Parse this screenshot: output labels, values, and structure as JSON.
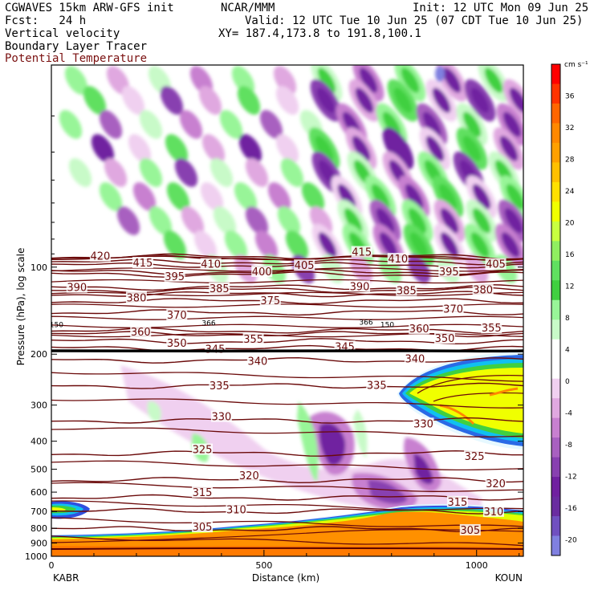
{
  "header": {
    "model_line": "CGWAVES 15km ARW-GFS init",
    "org": "NCAR/MMM",
    "init_line": "Init: 12 UTC Mon 09 Jun 25",
    "fcst_line": "Fcst:   24 h",
    "valid_line": "Valid: 12 UTC Tue 10 Jun 25 (07 CDT Tue 10 Jun 25)",
    "field1": "Vertical velocity",
    "xy_line": "XY= 187.4,173.8 to 191.8,100.1",
    "field2": "Boundary Layer Tracer",
    "field3": "Potential Temperature"
  },
  "chart_data": {
    "type": "cross-section",
    "xlabel": "Distance (km)",
    "ylabel": "Pressure (hPa), log scale",
    "x_ticks": [
      0,
      500,
      1000
    ],
    "xlim": [
      0,
      1110
    ],
    "y_scale": "log",
    "y_ticks": [
      100,
      200,
      300,
      400,
      500,
      600,
      700,
      800,
      900,
      1000
    ],
    "ylim": [
      1000,
      20
    ],
    "left_endpoint": "KABR",
    "right_endpoint": "KOUN",
    "colorbar": {
      "unit": "cm s⁻¹",
      "ticks": [
        36,
        32,
        28,
        24,
        20,
        16,
        12,
        8,
        4,
        0,
        -4,
        -8,
        -12,
        -16,
        -20
      ],
      "colors": [
        "#ff0000",
        "#ff3300",
        "#ff6600",
        "#ff8800",
        "#ffa000",
        "#ffc000",
        "#ffe000",
        "#f0ff00",
        "#c8ff40",
        "#90ee60",
        "#60e060",
        "#40d040",
        "#98f598",
        "#c8fac8",
        "#ffffff",
        "#ffffff",
        "#f0d0f0",
        "#e0a8e0",
        "#c880d0",
        "#a860c0",
        "#8840b0",
        "#7020a0",
        "#6a2ca0",
        "#7050c0",
        "#8080e0"
      ]
    },
    "theta_labels": [
      {
        "value": "420",
        "x_km": 115,
        "p": 92
      },
      {
        "value": "415",
        "x_km": 215,
        "p": 97
      },
      {
        "value": "410",
        "x_km": 375,
        "p": 98
      },
      {
        "value": "405",
        "x_km": 595,
        "p": 99
      },
      {
        "value": "415",
        "x_km": 730,
        "p": 89
      },
      {
        "value": "410",
        "x_km": 815,
        "p": 94
      },
      {
        "value": "405",
        "x_km": 1045,
        "p": 98
      },
      {
        "value": "390",
        "x_km": 60,
        "p": 118
      },
      {
        "value": "395",
        "x_km": 290,
        "p": 108
      },
      {
        "value": "400",
        "x_km": 495,
        "p": 104
      },
      {
        "value": "395",
        "x_km": 935,
        "p": 104
      },
      {
        "value": "390",
        "x_km": 725,
        "p": 117
      },
      {
        "value": "385",
        "x_km": 395,
        "p": 119
      },
      {
        "value": "380",
        "x_km": 200,
        "p": 128
      },
      {
        "value": "375",
        "x_km": 515,
        "p": 131
      },
      {
        "value": "385",
        "x_km": 835,
        "p": 121
      },
      {
        "value": "380",
        "x_km": 1015,
        "p": 120
      },
      {
        "value": "370",
        "x_km": 295,
        "p": 147
      },
      {
        "value": "370",
        "x_km": 945,
        "p": 140
      },
      {
        "value": "360",
        "x_km": 210,
        "p": 168
      },
      {
        "value": "355",
        "x_km": 475,
        "p": 178
      },
      {
        "value": "350",
        "x_km": 295,
        "p": 184
      },
      {
        "value": "345",
        "x_km": 385,
        "p": 193
      },
      {
        "value": "345",
        "x_km": 690,
        "p": 189
      },
      {
        "value": "360",
        "x_km": 865,
        "p": 164
      },
      {
        "value": "350",
        "x_km": 925,
        "p": 177
      },
      {
        "value": "355",
        "x_km": 1035,
        "p": 163
      },
      {
        "value": "340",
        "x_km": 485,
        "p": 212
      },
      {
        "value": "340",
        "x_km": 855,
        "p": 208
      },
      {
        "value": "335",
        "x_km": 395,
        "p": 258
      },
      {
        "value": "335",
        "x_km": 765,
        "p": 257
      },
      {
        "value": "330",
        "x_km": 400,
        "p": 330
      },
      {
        "value": "330",
        "x_km": 875,
        "p": 349
      },
      {
        "value": "325",
        "x_km": 355,
        "p": 429
      },
      {
        "value": "325",
        "x_km": 995,
        "p": 453
      },
      {
        "value": "320",
        "x_km": 465,
        "p": 528
      },
      {
        "value": "320",
        "x_km": 1045,
        "p": 562
      },
      {
        "value": "315",
        "x_km": 355,
        "p": 603
      },
      {
        "value": "315",
        "x_km": 955,
        "p": 651
      },
      {
        "value": "310",
        "x_km": 435,
        "p": 693
      },
      {
        "value": "310",
        "x_km": 1040,
        "p": 703
      },
      {
        "value": "305",
        "x_km": 355,
        "p": 795
      },
      {
        "value": "305",
        "x_km": 985,
        "p": 815
      }
    ],
    "inline_labels": [
      {
        "value": "150",
        "x_km": 12,
        "p": 158
      },
      {
        "value": "366",
        "x_km": 370,
        "p": 156
      },
      {
        "value": "366",
        "x_km": 740,
        "p": 155
      },
      {
        "value": "150",
        "x_km": 790,
        "p": 158
      }
    ]
  }
}
